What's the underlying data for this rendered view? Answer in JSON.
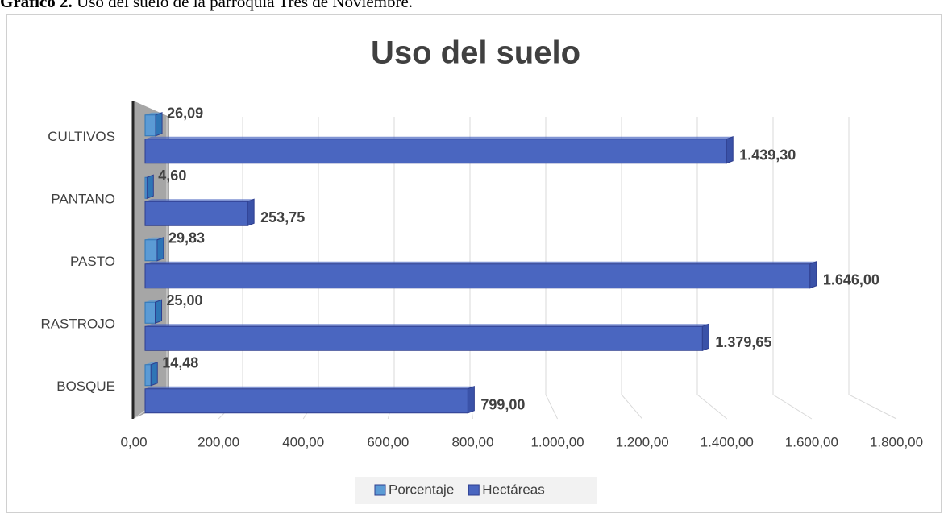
{
  "caption_label": "Gráfico 2.",
  "caption": "Uso del suelo de la parroquia Tres de Noviembre.",
  "chart_data": {
    "type": "bar",
    "orientation": "horizontal",
    "title": "Uso del suelo",
    "categories": [
      "CULTIVOS",
      "PANTANO",
      "PASTO",
      "RASTROJO",
      "BOSQUE"
    ],
    "series": [
      {
        "name": "Porcentaje",
        "color": "#5b9bd5",
        "values": [
          26.09,
          4.6,
          29.83,
          25.0,
          14.48
        ],
        "value_labels": [
          "26,09",
          "4,60",
          "29,83",
          "25,00",
          "14,48"
        ]
      },
      {
        "name": "Hectáreas",
        "color": "#4a66c0",
        "values": [
          1439.3,
          253.75,
          1646.0,
          1379.65,
          799.0
        ],
        "value_labels": [
          "1.439,30",
          "253,75",
          "1.646,00",
          "1.379,65",
          "799,00"
        ]
      }
    ],
    "xlim": [
      0,
      1800
    ],
    "xticks": [
      {
        "value": 0,
        "label": "0,00"
      },
      {
        "value": 200,
        "label": "200,00"
      },
      {
        "value": 400,
        "label": "400,00"
      },
      {
        "value": 600,
        "label": "600,00"
      },
      {
        "value": 800,
        "label": "800,00"
      },
      {
        "value": 1000,
        "label": "1.000,00"
      },
      {
        "value": 1200,
        "label": "1.200,00"
      },
      {
        "value": 1400,
        "label": "1.400,00"
      },
      {
        "value": 1600,
        "label": "1.600,00"
      },
      {
        "value": 1800,
        "label": "1.800,00"
      }
    ],
    "grid": true,
    "legend": "bottom"
  }
}
